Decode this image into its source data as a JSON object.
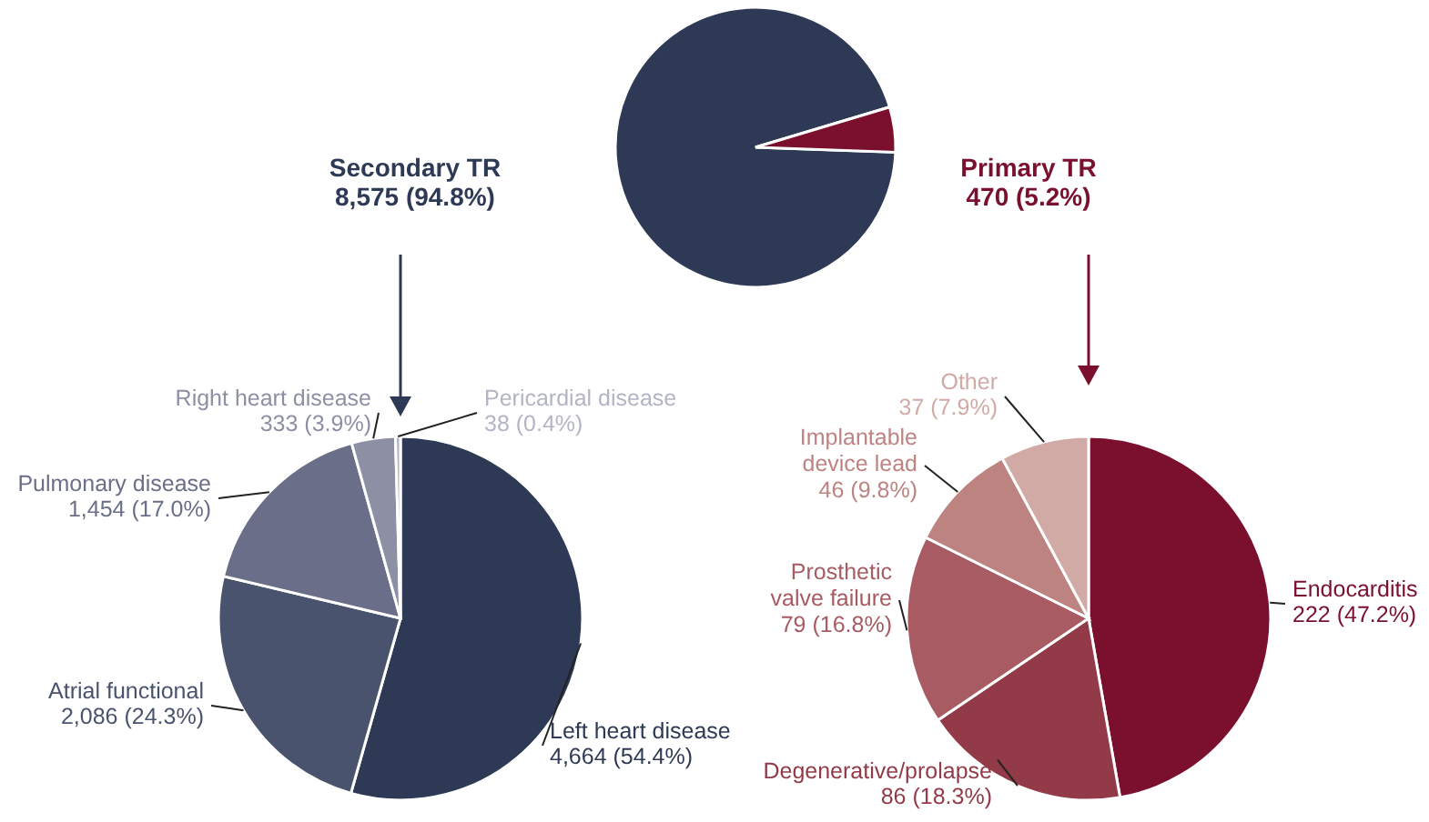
{
  "chart_data": [
    {
      "type": "pie",
      "categories": [
        "Secondary TR",
        "Primary TR"
      ],
      "values": [
        8575,
        470
      ],
      "value_labels": [
        "8,575 (94.8%)",
        "470 (5.2%)"
      ],
      "colors": [
        "#2e3a55",
        "#7a0f2e"
      ]
    },
    {
      "type": "pie",
      "categories": [
        "Left heart disease",
        "Atrial functional",
        "Pulmonary disease",
        "Right heart disease",
        "Pericardial disease"
      ],
      "values": [
        4664,
        2086,
        1454,
        333,
        38
      ],
      "value_labels": [
        "4,664 (54.4%)",
        "2,086 (24.3%)",
        "1,454 (17.0%)",
        "333 (3.9%)",
        "38 (0.4%)"
      ],
      "colors": [
        "#2e3a55",
        "#4a536d",
        "#6a6e88",
        "#8d90a5",
        "#b3b5c4"
      ]
    },
    {
      "type": "pie",
      "categories": [
        "Endocarditis",
        "Degenerative/prolapse",
        "Prosthetic valve failure",
        "Implantable device lead",
        "Other"
      ],
      "values": [
        222,
        86,
        79,
        46,
        37
      ],
      "value_labels": [
        "222 (47.2%)",
        "86 (18.3%)",
        "79 (16.8%)",
        "46 (9.8%)",
        "37 (7.9%)"
      ],
      "colors": [
        "#7a0f2e",
        "#923a47",
        "#a85b62",
        "#bd8380",
        "#d1aaa6"
      ]
    }
  ]
}
